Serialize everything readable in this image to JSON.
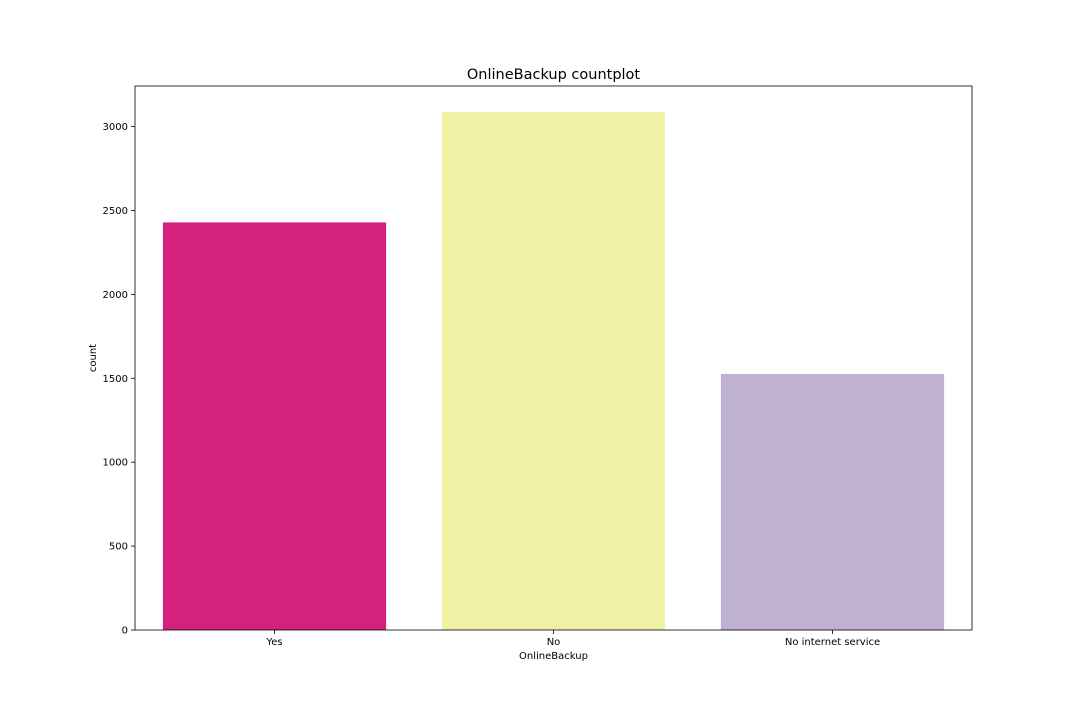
{
  "chart_data": {
    "type": "bar",
    "title": "OnlineBackup countplot",
    "xlabel": "OnlineBackup",
    "ylabel": "count",
    "categories": [
      "Yes",
      "No",
      "No internet service"
    ],
    "values": [
      2429,
      3088,
      1526
    ],
    "colors": [
      "#d4217f",
      "#f1f1a6",
      "#bfb2d0"
    ],
    "ylim": [
      0,
      3242
    ],
    "yticks": [
      0,
      500,
      1000,
      1500,
      2000,
      2500,
      3000
    ],
    "grid": false,
    "legend": "none"
  }
}
